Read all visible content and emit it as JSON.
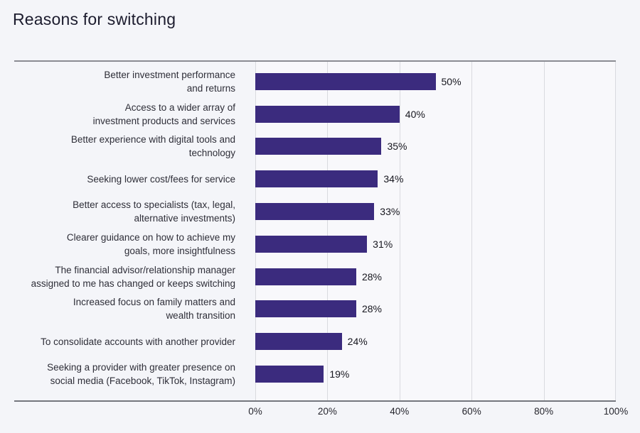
{
  "chart_data": {
    "type": "bar",
    "orientation": "horizontal",
    "title": "Reasons for switching",
    "categories": [
      "Better investment performance\nand returns",
      "Access to a wider array of\ninvestment products and services",
      "Better experience with digital tools and\ntechnology",
      "Seeking lower cost/fees for service",
      "Better access to specialists (tax, legal,\nalternative investments)",
      "Clearer guidance on how to achieve my\ngoals, more insightfulness",
      "The financial advisor/relationship manager\nassigned to me has changed or keeps switching",
      "Increased focus on family matters and\nwealth transition",
      "To consolidate accounts with another provider",
      "Seeking a provider with greater presence on\nsocial media (Facebook, TikTok, Instagram)"
    ],
    "values": [
      50,
      40,
      35,
      34,
      33,
      31,
      28,
      28,
      24,
      19
    ],
    "value_labels": [
      "50%",
      "40%",
      "35%",
      "34%",
      "33%",
      "31%",
      "28%",
      "28%",
      "24%",
      "19%"
    ],
    "x_ticks": [
      "0%",
      "20%",
      "40%",
      "60%",
      "80%",
      "100%"
    ],
    "x_tick_values": [
      0,
      20,
      40,
      60,
      80,
      100
    ],
    "xlim": [
      0,
      100
    ],
    "grid": true,
    "legend": false,
    "bar_color": "#3b2b7e",
    "background_color": "#f4f5f9",
    "plot_background_color": "#f8f8fb",
    "gridline_color": "#d9dadf"
  }
}
